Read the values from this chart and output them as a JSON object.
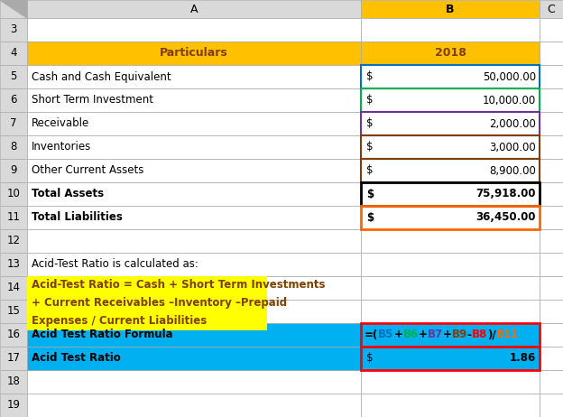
{
  "col_header_bg": "#FFC000",
  "col_header_text": "#7F3F00",
  "rows": [
    {
      "label": "Cash and Cash Equivalent",
      "value": "50,000.00",
      "border_color": "#0070C0"
    },
    {
      "label": "Short Term Investment",
      "value": "10,000.00",
      "border_color": "#00B050"
    },
    {
      "label": "Receivable",
      "value": "2,000.00",
      "border_color": "#7030A0"
    },
    {
      "label": "Inventories",
      "value": "3,000.00",
      "border_color": "#843C0C"
    },
    {
      "label": "Other Current Assets",
      "value": "8,900.00",
      "border_color": "#843C0C"
    }
  ],
  "total_rows": [
    {
      "label": "Total Assets",
      "value": "75,918.00",
      "border_color": "#000000"
    },
    {
      "label": "Total Liabilities",
      "value": "36,450.00",
      "border_color": "#FF6600"
    }
  ],
  "note_text": "Acid-Test Ratio is calculated as:",
  "formula_box_lines": [
    "Acid-Test Ratio = Cash + Short Term Investments",
    "+ Current Receivables –Inventory –Prepaid",
    "Expenses / Current Liabilities"
  ],
  "formula_box_bg": "#FFFF00",
  "formula_box_text_color": "#7F3F00",
  "formula_row_label": "Acid Test Ratio Formula",
  "formula_parts": [
    [
      "=(",
      "#000000"
    ],
    [
      "B5",
      "#0070C0"
    ],
    [
      "+",
      "#000000"
    ],
    [
      "B6",
      "#00B050"
    ],
    [
      "+",
      "#000000"
    ],
    [
      "B7",
      "#7030A0"
    ],
    [
      "+",
      "#000000"
    ],
    [
      "B9",
      "#843C0C"
    ],
    [
      "-",
      "#000000"
    ],
    [
      "B8",
      "#FF0000"
    ],
    [
      ")/",
      "#000000"
    ],
    [
      "B11",
      "#FF6600"
    ]
  ],
  "cyan_bg": "#00B0F0",
  "cyan_text": "#000000",
  "red_border": "#FF0000",
  "result_label": "Acid Test Ratio",
  "result_value": "1.86",
  "row_num_bg": "#D9D9D9",
  "col_hdr_bg": "#D9D9D9",
  "b_col_hdr_bg": "#FFC000",
  "grid_color": "#AAAAAA",
  "bg_color": "#FFFFFF"
}
